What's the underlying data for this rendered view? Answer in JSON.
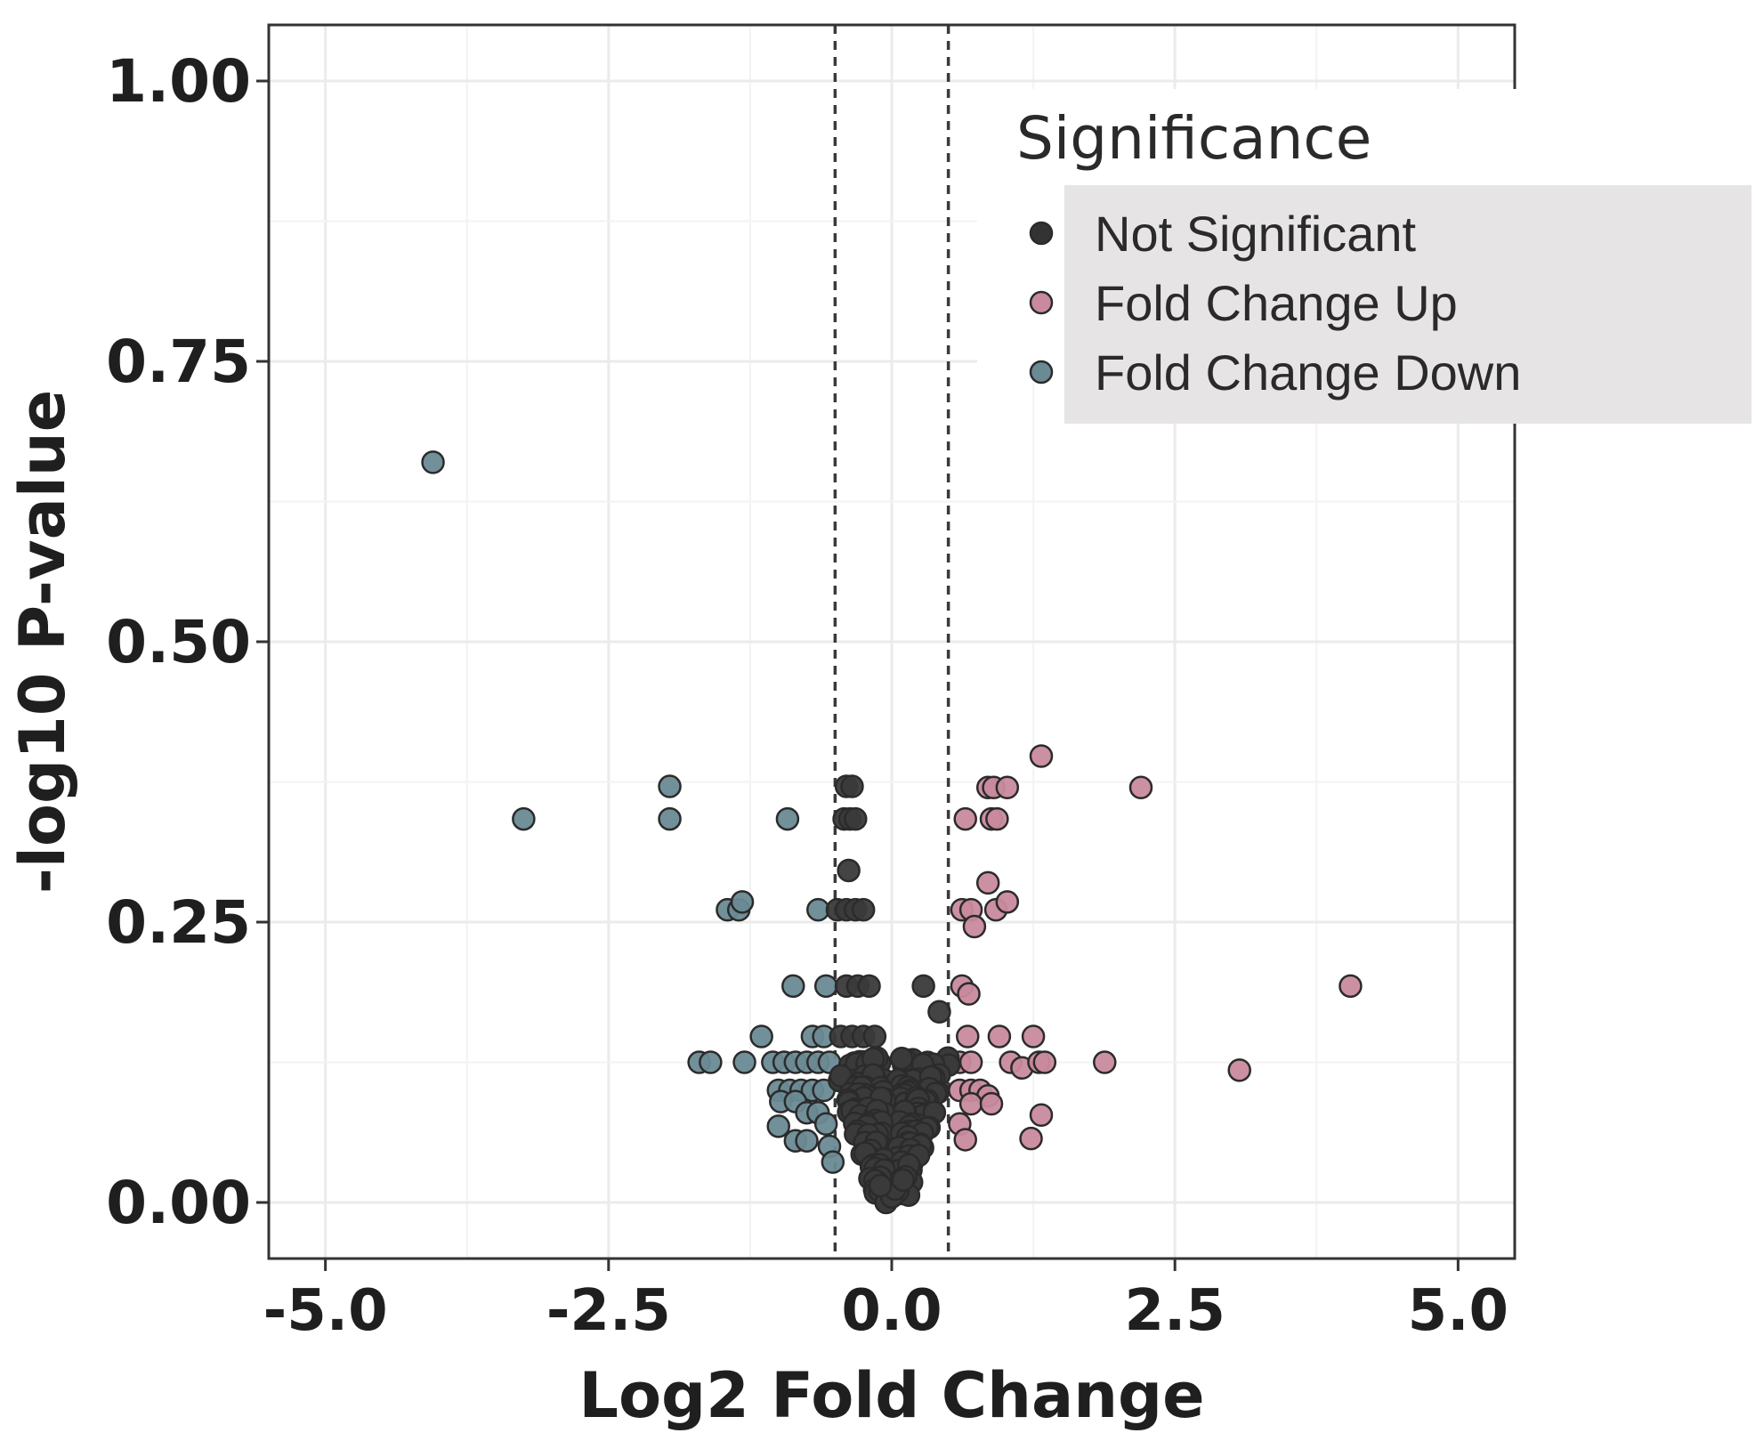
{
  "chart_data": {
    "type": "scatter",
    "title": "",
    "xlabel": "Log2 Fold Change",
    "ylabel": "-log10 P-value",
    "xlim": [
      -5.5,
      5.5
    ],
    "ylim": [
      -0.05,
      1.05
    ],
    "x_ticks": [
      -5.0,
      -2.5,
      0.0,
      2.5,
      5.0
    ],
    "x_tick_labels": [
      "-5.0",
      "-2.5",
      "0.0",
      "2.5",
      "5.0"
    ],
    "y_ticks": [
      0.0,
      0.25,
      0.5,
      0.75,
      1.0
    ],
    "y_tick_labels": [
      "0.00",
      "0.25",
      "0.50",
      "0.75",
      "1.00"
    ],
    "grid": true,
    "threshold_lines_x": [
      -0.5,
      0.5
    ],
    "legend": {
      "title": "Significance",
      "placement": "top-right",
      "entries": [
        "Not Significant",
        "Fold Change Up",
        "Fold Change Down"
      ]
    },
    "colors": {
      "Not Significant": "#3a3a3a",
      "Fold Change Up": "#c98a9e",
      "Fold Change Down": "#6a8a94"
    },
    "series": [
      {
        "name": "Fold Change Down",
        "points": [
          [
            -4.05,
            0.66
          ],
          [
            -3.25,
            0.342
          ],
          [
            -1.96,
            0.342
          ],
          [
            -1.96,
            0.371
          ],
          [
            -0.92,
            0.342
          ],
          [
            -1.45,
            0.261
          ],
          [
            -1.35,
            0.261
          ],
          [
            -1.32,
            0.268
          ],
          [
            -0.65,
            0.261
          ],
          [
            -0.87,
            0.193
          ],
          [
            -0.58,
            0.193
          ],
          [
            -1.15,
            0.148
          ],
          [
            -0.7,
            0.148
          ],
          [
            -0.6,
            0.148
          ],
          [
            -1.7,
            0.125
          ],
          [
            -1.6,
            0.125
          ],
          [
            -1.3,
            0.125
          ],
          [
            -1.05,
            0.125
          ],
          [
            -0.95,
            0.125
          ],
          [
            -0.85,
            0.125
          ],
          [
            -0.75,
            0.125
          ],
          [
            -0.65,
            0.125
          ],
          [
            -0.55,
            0.125
          ],
          [
            -1.0,
            0.1
          ],
          [
            -0.9,
            0.1
          ],
          [
            -0.8,
            0.1
          ],
          [
            -0.7,
            0.1
          ],
          [
            -0.6,
            0.1
          ],
          [
            -0.98,
            0.09
          ],
          [
            -0.85,
            0.09
          ],
          [
            -0.75,
            0.08
          ],
          [
            -0.65,
            0.08
          ],
          [
            -0.58,
            0.07
          ],
          [
            -1.0,
            0.068
          ],
          [
            -0.85,
            0.055
          ],
          [
            -0.75,
            0.055
          ],
          [
            -0.55,
            0.05
          ],
          [
            -0.52,
            0.036
          ]
        ]
      },
      {
        "name": "Fold Change Up",
        "points": [
          [
            1.32,
            0.398
          ],
          [
            2.2,
            0.37
          ],
          [
            0.85,
            0.37
          ],
          [
            0.9,
            0.37
          ],
          [
            1.02,
            0.37
          ],
          [
            0.65,
            0.342
          ],
          [
            0.88,
            0.342
          ],
          [
            0.93,
            0.342
          ],
          [
            0.85,
            0.285
          ],
          [
            0.62,
            0.261
          ],
          [
            0.7,
            0.261
          ],
          [
            0.92,
            0.261
          ],
          [
            1.02,
            0.268
          ],
          [
            0.73,
            0.246
          ],
          [
            0.62,
            0.193
          ],
          [
            0.68,
            0.186
          ],
          [
            4.05,
            0.193
          ],
          [
            0.67,
            0.148
          ],
          [
            0.95,
            0.148
          ],
          [
            1.25,
            0.148
          ],
          [
            0.6,
            0.125
          ],
          [
            0.7,
            0.125
          ],
          [
            1.05,
            0.125
          ],
          [
            1.15,
            0.12
          ],
          [
            1.3,
            0.125
          ],
          [
            1.35,
            0.125
          ],
          [
            1.88,
            0.125
          ],
          [
            3.07,
            0.118
          ],
          [
            0.6,
            0.1
          ],
          [
            0.7,
            0.1
          ],
          [
            0.78,
            0.1
          ],
          [
            0.85,
            0.095
          ],
          [
            0.7,
            0.088
          ],
          [
            0.88,
            0.088
          ],
          [
            1.32,
            0.078
          ],
          [
            0.6,
            0.07
          ],
          [
            0.65,
            0.056
          ],
          [
            1.23,
            0.057
          ]
        ]
      },
      {
        "name": "Not Significant",
        "points": [
          [
            -0.4,
            0.371
          ],
          [
            -0.35,
            0.371
          ],
          [
            -0.42,
            0.342
          ],
          [
            -0.37,
            0.342
          ],
          [
            -0.32,
            0.342
          ],
          [
            -0.38,
            0.296
          ],
          [
            -0.48,
            0.261
          ],
          [
            -0.4,
            0.261
          ],
          [
            -0.32,
            0.261
          ],
          [
            -0.25,
            0.261
          ],
          [
            -0.4,
            0.193
          ],
          [
            -0.3,
            0.193
          ],
          [
            -0.2,
            0.193
          ],
          [
            0.28,
            0.193
          ],
          [
            0.42,
            0.17
          ],
          [
            -0.45,
            0.148
          ],
          [
            -0.35,
            0.148
          ],
          [
            -0.25,
            0.148
          ],
          [
            -0.15,
            0.148
          ]
        ]
      }
    ]
  }
}
